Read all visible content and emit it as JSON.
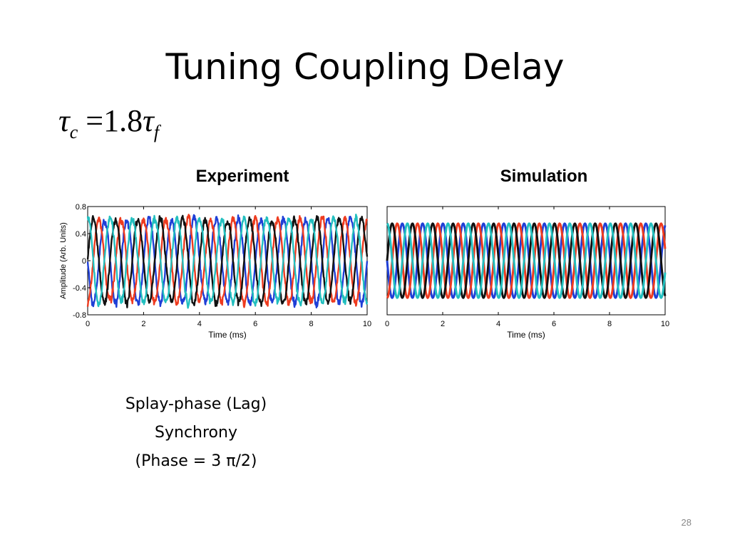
{
  "slide": {
    "title": "Tuning Coupling Delay",
    "equation": {
      "lhs": "τ",
      "lhs_sub": "c",
      "eq": "=",
      "coef": "1.8",
      "rhs": "τ",
      "rhs_sub": "f"
    },
    "caption": [
      "Splay-phase (Lag)",
      "Synchrony",
      "(Phase = 3 π/2)"
    ],
    "page_number": "28"
  },
  "chart_data": [
    {
      "type": "line",
      "title": "Experiment",
      "xlabel": "Time (ms)",
      "ylabel": "Amplitude (Arb. Units)",
      "xlim": [
        0,
        10
      ],
      "ylim": [
        -0.8,
        0.8
      ],
      "xticks": [
        "0",
        "2",
        "4",
        "6",
        "8",
        "10"
      ],
      "yticks": [
        "0.8",
        "0.4",
        "0",
        "-0.4",
        "-0.8"
      ],
      "grid": false,
      "noisy": true,
      "period_ms": 0.8,
      "amplitude": 0.62,
      "series": [
        {
          "color": "#1f3fd6",
          "phase_deg": 0
        },
        {
          "color": "#ee3b1f",
          "phase_deg": 90
        },
        {
          "color": "#111111",
          "phase_deg": 180
        },
        {
          "color": "#22bfbf",
          "phase_deg": 270
        }
      ]
    },
    {
      "type": "line",
      "title": "Simulation",
      "xlabel": "Time (ms)",
      "ylabel": "",
      "xlim": [
        0,
        10
      ],
      "ylim": [
        -0.8,
        0.8
      ],
      "xticks": [
        "0",
        "2",
        "4",
        "6",
        "8",
        "10"
      ],
      "yticks": [],
      "grid": false,
      "noisy": false,
      "period_ms": 0.73,
      "amplitude": 0.55,
      "series": [
        {
          "color": "#1f3fd6",
          "phase_deg": 0
        },
        {
          "color": "#ee3b1f",
          "phase_deg": 90
        },
        {
          "color": "#111111",
          "phase_deg": 180
        },
        {
          "color": "#22bfbf",
          "phase_deg": 270
        }
      ]
    }
  ]
}
